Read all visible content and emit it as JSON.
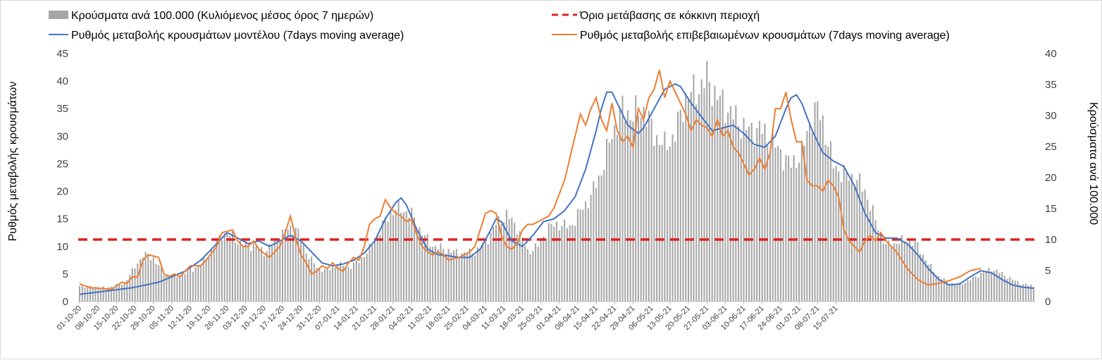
{
  "chart_data": {
    "type": "bar+line",
    "legend": [
      {
        "key": "bars",
        "label": "Κρούσματα ανά 100.000 (Κυλιόμενος μέσος όρος 7 ημερών)",
        "color": "#a6a6a6",
        "symbol": "bar"
      },
      {
        "key": "threshold",
        "label": "Όριο μετάβασης σε κόκκινη περιοχή",
        "color": "#e02020",
        "symbol": "dashed-line"
      },
      {
        "key": "model",
        "label": "Ρυθμός μεταβολής κρουσμάτων μοντέλου (7days moving average)",
        "color": "#4472c4",
        "symbol": "line"
      },
      {
        "key": "confirmed",
        "label": "Ρυθμός μεταβολής επιβεβαιωμένων κρουσμάτων (7days moving average)",
        "color": "#ed7d31",
        "symbol": "line"
      }
    ],
    "ylabel_left": "Ρυθμός μεταβολής κρουσμάτων",
    "ylabel_right": "Κρούσματα ανά 100.000",
    "left_axis": {
      "min": 0,
      "max": 45,
      "ticks": [
        "0",
        "5",
        "10",
        "15",
        "20",
        "25",
        "30",
        "35",
        "40",
        "45"
      ]
    },
    "right_axis": {
      "min": 0,
      "max": 40,
      "ticks": [
        "0",
        "5",
        "10",
        "15",
        "20",
        "25",
        "30",
        "35",
        "40"
      ]
    },
    "x_tick_labels": [
      "01-10-20",
      "08-10-20",
      "15-10-20",
      "22-10-20",
      "29-10-20",
      "05-11-20",
      "12-11-20",
      "19-11-20",
      "26-11-20",
      "03-12-20",
      "10-12-20",
      "17-12-20",
      "24-12-20",
      "31-12-20",
      "07-01-21",
      "14-01-21",
      "21-01-21",
      "28-01-21",
      "04-02-21",
      "11-02-21",
      "18-02-21",
      "25-02-21",
      "04-03-21",
      "11-03-21",
      "18-03-21",
      "25-03-21",
      "01-04-21",
      "08-04-21",
      "15-04-21",
      "22-04-21",
      "29-04-21",
      "06-05-21",
      "13-05-21",
      "20-05-21",
      "27-05-21",
      "03-06-21",
      "10-06-21",
      "17-06-21",
      "24-06-21",
      "01-07-21",
      "08-07-21",
      "15-07-21"
    ],
    "days": 295,
    "threshold_value_right_axis": 10,
    "series_keyframes": {
      "bars_right_axis": [
        [
          0,
          2.5
        ],
        [
          10,
          2.2
        ],
        [
          17,
          3
        ],
        [
          24,
          7.5
        ],
        [
          28,
          7
        ],
        [
          32,
          4.5
        ],
        [
          37,
          4
        ],
        [
          42,
          5
        ],
        [
          46,
          6
        ],
        [
          50,
          8
        ],
        [
          54,
          11
        ],
        [
          58,
          10.5
        ],
        [
          62,
          9
        ],
        [
          66,
          9
        ],
        [
          70,
          8
        ],
        [
          74,
          9.5
        ],
        [
          78,
          11.5
        ],
        [
          82,
          12
        ],
        [
          86,
          8
        ],
        [
          90,
          5.5
        ],
        [
          94,
          5
        ],
        [
          98,
          6
        ],
        [
          102,
          5.5
        ],
        [
          106,
          6.5
        ],
        [
          110,
          8.5
        ],
        [
          114,
          11.5
        ],
        [
          118,
          14.5
        ],
        [
          122,
          15
        ],
        [
          126,
          14
        ],
        [
          130,
          11
        ],
        [
          134,
          9
        ],
        [
          138,
          8.5
        ],
        [
          142,
          8
        ],
        [
          146,
          7.8
        ],
        [
          150,
          8
        ],
        [
          154,
          9.5
        ],
        [
          158,
          12.5
        ],
        [
          162,
          14
        ],
        [
          166,
          12
        ],
        [
          170,
          8
        ],
        [
          174,
          9
        ],
        [
          178,
          12
        ],
        [
          182,
          12.5
        ],
        [
          186,
          12
        ],
        [
          190,
          14.5
        ],
        [
          194,
          17
        ],
        [
          198,
          21
        ],
        [
          202,
          27
        ],
        [
          206,
          31
        ],
        [
          210,
          30
        ],
        [
          214,
          31
        ],
        [
          218,
          27
        ],
        [
          222,
          25
        ],
        [
          226,
          27
        ],
        [
          230,
          33
        ],
        [
          234,
          34
        ],
        [
          238,
          36
        ],
        [
          242,
          33
        ],
        [
          246,
          31
        ],
        [
          250,
          29
        ],
        [
          254,
          27.5
        ],
        [
          258,
          28
        ],
        [
          262,
          26
        ],
        [
          266,
          24
        ],
        [
          270,
          22
        ],
        [
          274,
          24
        ],
        [
          278,
          30
        ],
        [
          280,
          31
        ],
        [
          282,
          29
        ],
        [
          286,
          22
        ],
        [
          290,
          20.5
        ],
        [
          294,
          20
        ],
        [
          298,
          18
        ],
        [
          302,
          13
        ],
        [
          306,
          9
        ],
        [
          310,
          9.5
        ],
        [
          314,
          10
        ],
        [
          318,
          9
        ],
        [
          322,
          6
        ],
        [
          326,
          4
        ],
        [
          330,
          3
        ],
        [
          334,
          2.8
        ],
        [
          338,
          3.5
        ],
        [
          342,
          4.5
        ],
        [
          346,
          5.3
        ],
        [
          350,
          4.5
        ],
        [
          354,
          3.5
        ],
        [
          358,
          2.8
        ],
        [
          362,
          2.5
        ]
      ],
      "model_left_axis": [
        [
          0,
          1.3
        ],
        [
          20,
          2.5
        ],
        [
          30,
          3.5
        ],
        [
          40,
          5.5
        ],
        [
          46,
          7.5
        ],
        [
          52,
          10.5
        ],
        [
          56,
          12.5
        ],
        [
          60,
          11.5
        ],
        [
          64,
          10.5
        ],
        [
          68,
          11
        ],
        [
          72,
          10
        ],
        [
          76,
          11
        ],
        [
          80,
          12
        ],
        [
          84,
          11
        ],
        [
          88,
          9
        ],
        [
          92,
          7
        ],
        [
          96,
          6.5
        ],
        [
          100,
          6.8
        ],
        [
          104,
          7.5
        ],
        [
          108,
          8.8
        ],
        [
          112,
          11
        ],
        [
          116,
          15
        ],
        [
          120,
          18
        ],
        [
          122,
          18.8
        ],
        [
          124,
          17.5
        ],
        [
          128,
          13
        ],
        [
          132,
          9.5
        ],
        [
          136,
          8.5
        ],
        [
          140,
          8.3
        ],
        [
          144,
          8
        ],
        [
          148,
          8
        ],
        [
          152,
          9.5
        ],
        [
          156,
          13
        ],
        [
          158,
          15
        ],
        [
          160,
          14.5
        ],
        [
          164,
          11
        ],
        [
          168,
          10
        ],
        [
          172,
          12
        ],
        [
          176,
          14.5
        ],
        [
          180,
          15
        ],
        [
          184,
          16.5
        ],
        [
          188,
          19
        ],
        [
          192,
          24
        ],
        [
          196,
          31
        ],
        [
          198,
          35
        ],
        [
          200,
          38
        ],
        [
          202,
          38
        ],
        [
          204,
          36
        ],
        [
          208,
          32
        ],
        [
          212,
          30.5
        ],
        [
          214,
          31.5
        ],
        [
          218,
          35
        ],
        [
          222,
          38.5
        ],
        [
          226,
          39.5
        ],
        [
          228,
          39
        ],
        [
          232,
          36
        ],
        [
          236,
          33.5
        ],
        [
          240,
          31
        ],
        [
          244,
          31.5
        ],
        [
          248,
          32
        ],
        [
          252,
          30.5
        ],
        [
          256,
          28.5
        ],
        [
          260,
          28
        ],
        [
          264,
          30
        ],
        [
          268,
          35
        ],
        [
          270,
          37
        ],
        [
          272,
          37.5
        ],
        [
          274,
          36
        ],
        [
          278,
          31
        ],
        [
          282,
          27
        ],
        [
          286,
          25.5
        ],
        [
          290,
          24.5
        ],
        [
          294,
          21
        ],
        [
          298,
          16
        ],
        [
          302,
          12.5
        ],
        [
          306,
          11.5
        ],
        [
          310,
          11.5
        ],
        [
          314,
          10.5
        ],
        [
          318,
          8.5
        ],
        [
          322,
          6
        ],
        [
          326,
          4
        ],
        [
          330,
          3
        ],
        [
          334,
          3.2
        ],
        [
          338,
          4.5
        ],
        [
          342,
          5.6
        ],
        [
          346,
          5.2
        ],
        [
          350,
          4
        ],
        [
          354,
          3
        ],
        [
          358,
          2.6
        ],
        [
          362,
          2.4
        ]
      ],
      "confirmed_left_axis": [
        [
          0,
          3.2
        ],
        [
          4,
          2.5
        ],
        [
          8,
          2.4
        ],
        [
          12,
          2.2
        ],
        [
          16,
          3.5
        ],
        [
          18,
          3.3
        ],
        [
          20,
          4.5
        ],
        [
          22,
          4.4
        ],
        [
          24,
          7.5
        ],
        [
          26,
          8.5
        ],
        [
          30,
          8
        ],
        [
          32,
          5
        ],
        [
          34,
          4.5
        ],
        [
          36,
          5
        ],
        [
          38,
          4.5
        ],
        [
          40,
          5.5
        ],
        [
          42,
          6.5
        ],
        [
          46,
          6.5
        ],
        [
          48,
          7.5
        ],
        [
          52,
          10
        ],
        [
          54,
          12.5
        ],
        [
          58,
          13
        ],
        [
          60,
          11
        ],
        [
          62,
          10
        ],
        [
          64,
          10
        ],
        [
          66,
          11
        ],
        [
          68,
          9.5
        ],
        [
          72,
          8
        ],
        [
          74,
          9
        ],
        [
          76,
          10
        ],
        [
          78,
          12.5
        ],
        [
          80,
          15.5
        ],
        [
          82,
          11.5
        ],
        [
          84,
          8.5
        ],
        [
          86,
          7
        ],
        [
          88,
          5
        ],
        [
          90,
          5.5
        ],
        [
          92,
          6.5
        ],
        [
          94,
          6
        ],
        [
          96,
          7
        ],
        [
          98,
          6
        ],
        [
          100,
          5.5
        ],
        [
          102,
          7
        ],
        [
          104,
          8
        ],
        [
          106,
          7.5
        ],
        [
          108,
          10
        ],
        [
          110,
          14
        ],
        [
          112,
          15
        ],
        [
          114,
          15.5
        ],
        [
          116,
          18.5
        ],
        [
          118,
          17
        ],
        [
          120,
          16
        ],
        [
          122,
          15.5
        ],
        [
          124,
          14.5
        ],
        [
          126,
          15
        ],
        [
          128,
          12
        ],
        [
          130,
          10
        ],
        [
          132,
          9
        ],
        [
          134,
          8.5
        ],
        [
          136,
          9
        ],
        [
          138,
          8.5
        ],
        [
          140,
          7.5
        ],
        [
          142,
          7.8
        ],
        [
          144,
          8
        ],
        [
          146,
          8.5
        ],
        [
          148,
          9
        ],
        [
          150,
          10
        ],
        [
          152,
          13
        ],
        [
          154,
          16
        ],
        [
          156,
          16.5
        ],
        [
          158,
          16
        ],
        [
          160,
          12
        ],
        [
          162,
          10
        ],
        [
          164,
          9.5
        ],
        [
          166,
          10.5
        ],
        [
          168,
          13
        ],
        [
          170,
          14
        ],
        [
          172,
          14
        ],
        [
          174,
          14.5
        ],
        [
          176,
          15
        ],
        [
          178,
          15.5
        ],
        [
          180,
          17
        ],
        [
          182,
          19.5
        ],
        [
          184,
          22
        ],
        [
          186,
          26
        ],
        [
          188,
          30
        ],
        [
          190,
          34
        ],
        [
          192,
          32
        ],
        [
          194,
          35
        ],
        [
          196,
          37
        ],
        [
          198,
          33
        ],
        [
          200,
          31
        ],
        [
          202,
          36
        ],
        [
          204,
          31
        ],
        [
          206,
          29
        ],
        [
          208,
          30
        ],
        [
          210,
          28
        ],
        [
          212,
          35
        ],
        [
          214,
          33
        ],
        [
          216,
          37
        ],
        [
          218,
          38.5
        ],
        [
          220,
          42
        ],
        [
          222,
          37
        ],
        [
          224,
          40
        ],
        [
          226,
          38
        ],
        [
          228,
          36
        ],
        [
          230,
          34
        ],
        [
          232,
          31
        ],
        [
          234,
          33
        ],
        [
          236,
          32
        ],
        [
          238,
          31.5
        ],
        [
          240,
          30
        ],
        [
          242,
          33
        ],
        [
          244,
          30
        ],
        [
          246,
          31
        ],
        [
          248,
          28
        ],
        [
          250,
          27
        ],
        [
          252,
          25
        ],
        [
          254,
          23
        ],
        [
          256,
          24
        ],
        [
          258,
          26
        ],
        [
          260,
          24
        ],
        [
          262,
          27
        ],
        [
          264,
          35
        ],
        [
          266,
          35
        ],
        [
          268,
          38
        ],
        [
          270,
          33
        ],
        [
          272,
          29
        ],
        [
          274,
          29
        ],
        [
          276,
          22
        ],
        [
          278,
          21
        ],
        [
          280,
          21
        ],
        [
          282,
          20
        ],
        [
          284,
          22
        ],
        [
          286,
          21
        ],
        [
          288,
          19
        ],
        [
          290,
          13
        ],
        [
          292,
          11
        ],
        [
          294,
          10
        ],
        [
          296,
          9
        ],
        [
          298,
          11
        ],
        [
          300,
          12
        ],
        [
          302,
          11
        ],
        [
          304,
          12.5
        ],
        [
          306,
          11
        ],
        [
          308,
          10
        ],
        [
          310,
          9
        ],
        [
          312,
          7.5
        ],
        [
          314,
          6
        ],
        [
          316,
          5
        ],
        [
          318,
          4
        ],
        [
          320,
          3.5
        ],
        [
          322,
          3
        ],
        [
          326,
          3.3
        ],
        [
          330,
          3.8
        ],
        [
          334,
          4.5
        ],
        [
          338,
          5.6
        ],
        [
          342,
          6
        ]
      ]
    }
  }
}
